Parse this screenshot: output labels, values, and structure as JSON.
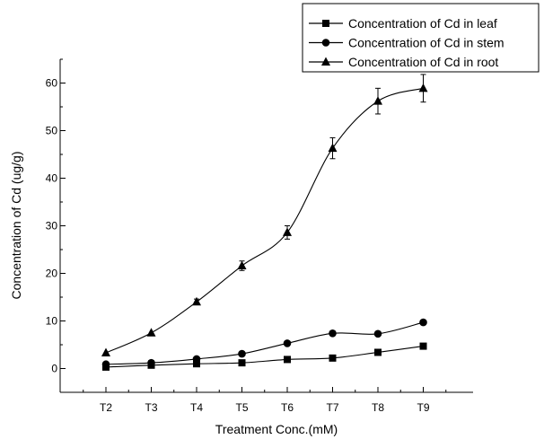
{
  "chart_data": {
    "type": "line",
    "title": "",
    "xlabel": "Treatment Conc.(mM)",
    "ylabel": "Concentration of Cd (ug/g)",
    "categories": [
      "T2",
      "T3",
      "T4",
      "T5",
      "T6",
      "T7",
      "T8",
      "T9"
    ],
    "ylim": [
      -5,
      65
    ],
    "y_ticks": [
      0,
      10,
      20,
      30,
      40,
      50,
      60
    ],
    "grid": false,
    "legend_position": "top-right",
    "series": [
      {
        "name": "Concentration of Cd in leaf",
        "marker": "square",
        "values": [
          0.3,
          0.7,
          1.0,
          1.2,
          1.9,
          2.2,
          3.4,
          4.7
        ],
        "errors": [
          0,
          0,
          0,
          0,
          0,
          0,
          0,
          0
        ]
      },
      {
        "name": "Concentration of Cd in stem",
        "marker": "circle",
        "values": [
          0.9,
          1.2,
          2.0,
          3.1,
          5.3,
          7.4,
          7.3,
          9.7
        ],
        "errors": [
          0,
          0,
          0,
          0,
          0,
          0,
          0,
          0.3
        ]
      },
      {
        "name": "Concentration of Cd in root",
        "marker": "triangle",
        "values": [
          3.3,
          7.5,
          14.0,
          21.6,
          28.6,
          46.3,
          56.2,
          58.9
        ],
        "errors": [
          0,
          0,
          0.6,
          1.0,
          1.4,
          2.2,
          2.7,
          2.9
        ]
      }
    ]
  }
}
